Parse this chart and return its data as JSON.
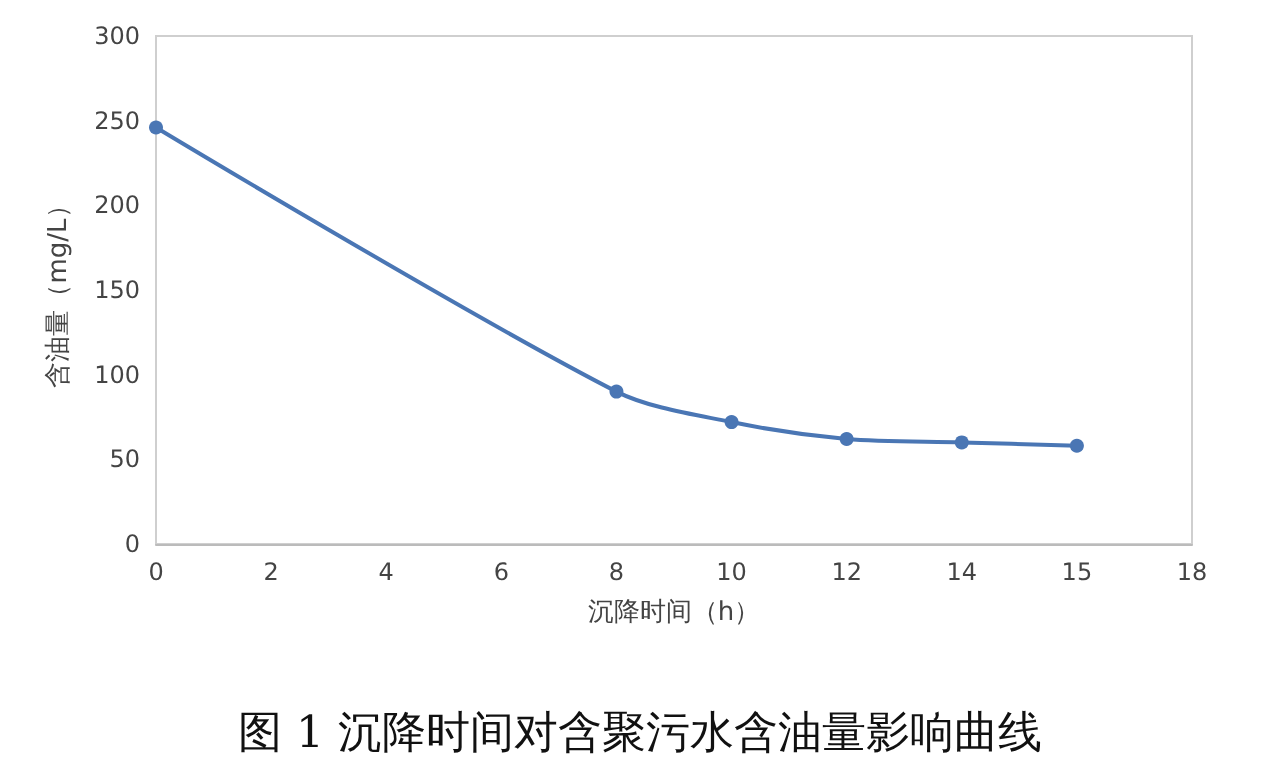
{
  "chart_data": {
    "type": "line",
    "title": "图 1 沉降时间对含聚污水含油量影响曲线",
    "xlabel": "沉降时间（h）",
    "ylabel": "含油量（mg/L）",
    "categories": [
      "0",
      "2",
      "4",
      "6",
      "8",
      "10",
      "12",
      "14",
      "15",
      "18"
    ],
    "series": [
      {
        "color": "#4a76b4",
        "values": [
          246,
          null,
          null,
          null,
          90,
          72,
          62,
          60,
          58,
          null
        ]
      }
    ],
    "ylim": [
      0,
      300
    ],
    "yticks": [
      0,
      50,
      100,
      150,
      200,
      250,
      300
    ],
    "marker": "circle",
    "line_style": "solid"
  }
}
